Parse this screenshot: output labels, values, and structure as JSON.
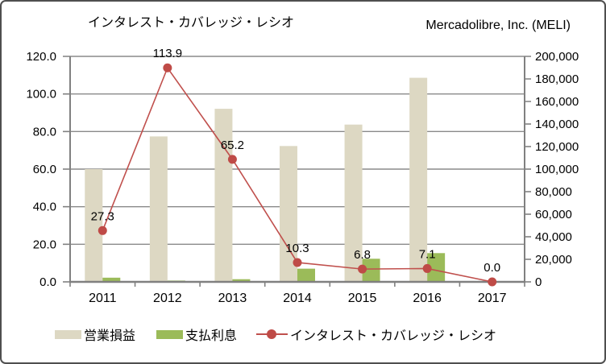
{
  "titles": {
    "chart_title": "インタレスト・カバレッジ・レシオ",
    "company_title": "Mercadolibre, Inc. (MELI)"
  },
  "chart_data": {
    "type": "combo-bar-line",
    "categories": [
      "2011",
      "2012",
      "2013",
      "2014",
      "2015",
      "2016",
      "2017"
    ],
    "series": [
      {
        "name": "営業損益",
        "type": "bar",
        "axis": "right",
        "color": "#ddd8c3",
        "values": [
          100000,
          129000,
          153500,
          120500,
          139500,
          181000,
          0
        ]
      },
      {
        "name": "支払利息",
        "type": "bar",
        "axis": "right",
        "color": "#9bbb59",
        "values": [
          3700,
          1150,
          2350,
          11700,
          20500,
          25500,
          0
        ]
      },
      {
        "name": "インタレスト・カバレッジ・レシオ",
        "type": "line",
        "axis": "left",
        "color": "#c0504d",
        "marker_color": "#bf4b47",
        "values": [
          27.3,
          113.9,
          65.2,
          10.3,
          6.8,
          7.1,
          0.0
        ],
        "data_labels": [
          "27.3",
          "113.9",
          "65.2",
          "10.3",
          "6.8",
          "7.1",
          "0.0"
        ]
      }
    ],
    "left_axis": {
      "min": 0,
      "max": 120,
      "step": 20,
      "tick_labels": [
        "0.0",
        "20.0",
        "40.0",
        "60.0",
        "80.0",
        "100.0",
        "120.0"
      ]
    },
    "right_axis": {
      "min": 0,
      "max": 200000,
      "step": 20000,
      "tick_labels": [
        "0",
        "20,000",
        "40,000",
        "60,000",
        "80,000",
        "100,000",
        "120,000",
        "140,000",
        "160,000",
        "180,000",
        "200,000"
      ]
    },
    "grid": true,
    "legend_position": "bottom"
  },
  "colors": {
    "grid": "#8a8a8a",
    "axis": "#808080",
    "text": "#000000",
    "bar_operating": "#ddd8c3",
    "bar_interest": "#9bbb59",
    "line_ratio": "#c0504d",
    "marker_ratio": "#bf4b47",
    "frame_border": "#4f4f4f",
    "background": "#ffffff"
  }
}
